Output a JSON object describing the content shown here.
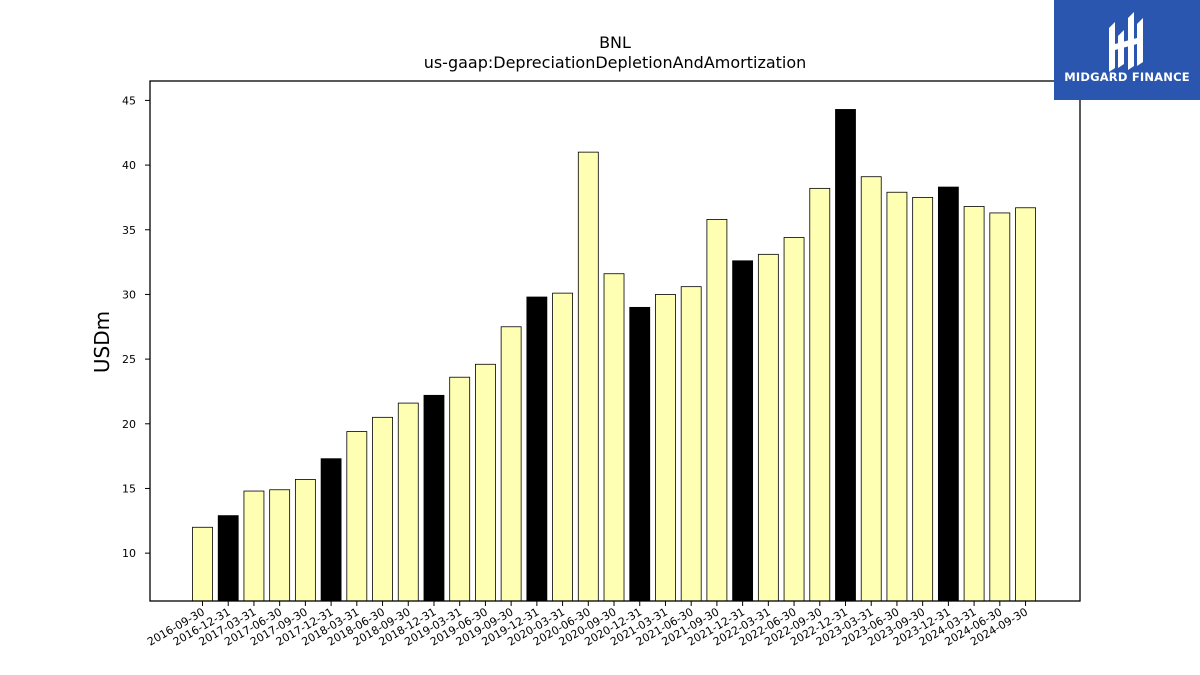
{
  "chart_data": {
    "type": "bar",
    "title": "BNL",
    "subtitle": "us-gaap:DepreciationDepletionAndAmortization",
    "xlabel": "",
    "ylabel": "USDm",
    "ylim": [
      6.3,
      46.5
    ],
    "yticks": [
      10,
      15,
      20,
      25,
      30,
      35,
      40,
      45
    ],
    "grid": false,
    "categories": [
      "2016-09-30",
      "2016-12-31",
      "2017-03-31",
      "2017-06-30",
      "2017-09-30",
      "2017-12-31",
      "2018-03-31",
      "2018-06-30",
      "2018-09-30",
      "2018-12-31",
      "2019-03-31",
      "2019-06-30",
      "2019-09-30",
      "2019-12-31",
      "2020-03-31",
      "2020-06-30",
      "2020-09-30",
      "2020-12-31",
      "2021-03-31",
      "2021-06-30",
      "2021-09-30",
      "2021-12-31",
      "2022-03-31",
      "2022-06-30",
      "2022-09-30",
      "2022-12-31",
      "2023-03-31",
      "2023-06-30",
      "2023-09-30",
      "2023-12-31",
      "2024-03-31",
      "2024-06-30",
      "2024-09-30"
    ],
    "values": [
      12.0,
      12.9,
      14.8,
      14.9,
      15.7,
      17.3,
      19.4,
      20.5,
      21.6,
      22.2,
      23.6,
      24.6,
      27.5,
      29.8,
      30.1,
      41.0,
      31.6,
      29.0,
      30.0,
      30.6,
      35.8,
      32.6,
      33.1,
      34.4,
      38.2,
      44.3,
      39.1,
      37.9,
      37.5,
      38.3,
      36.8,
      36.3,
      36.7
    ],
    "bar_kinds": [
      "q",
      "fy",
      "q",
      "q",
      "q",
      "fy",
      "q",
      "q",
      "q",
      "fy",
      "q",
      "q",
      "q",
      "fy",
      "q",
      "q",
      "q",
      "fy",
      "q",
      "q",
      "q",
      "fy",
      "q",
      "q",
      "q",
      "fy",
      "q",
      "q",
      "q",
      "fy",
      "q",
      "q",
      "q"
    ],
    "colors": {
      "q": "#ffffb3",
      "fy": "#000000",
      "edge": "#000000"
    }
  },
  "watermark": {
    "text": "MIDGARD FINANCE",
    "background": "#2a56b0"
  }
}
